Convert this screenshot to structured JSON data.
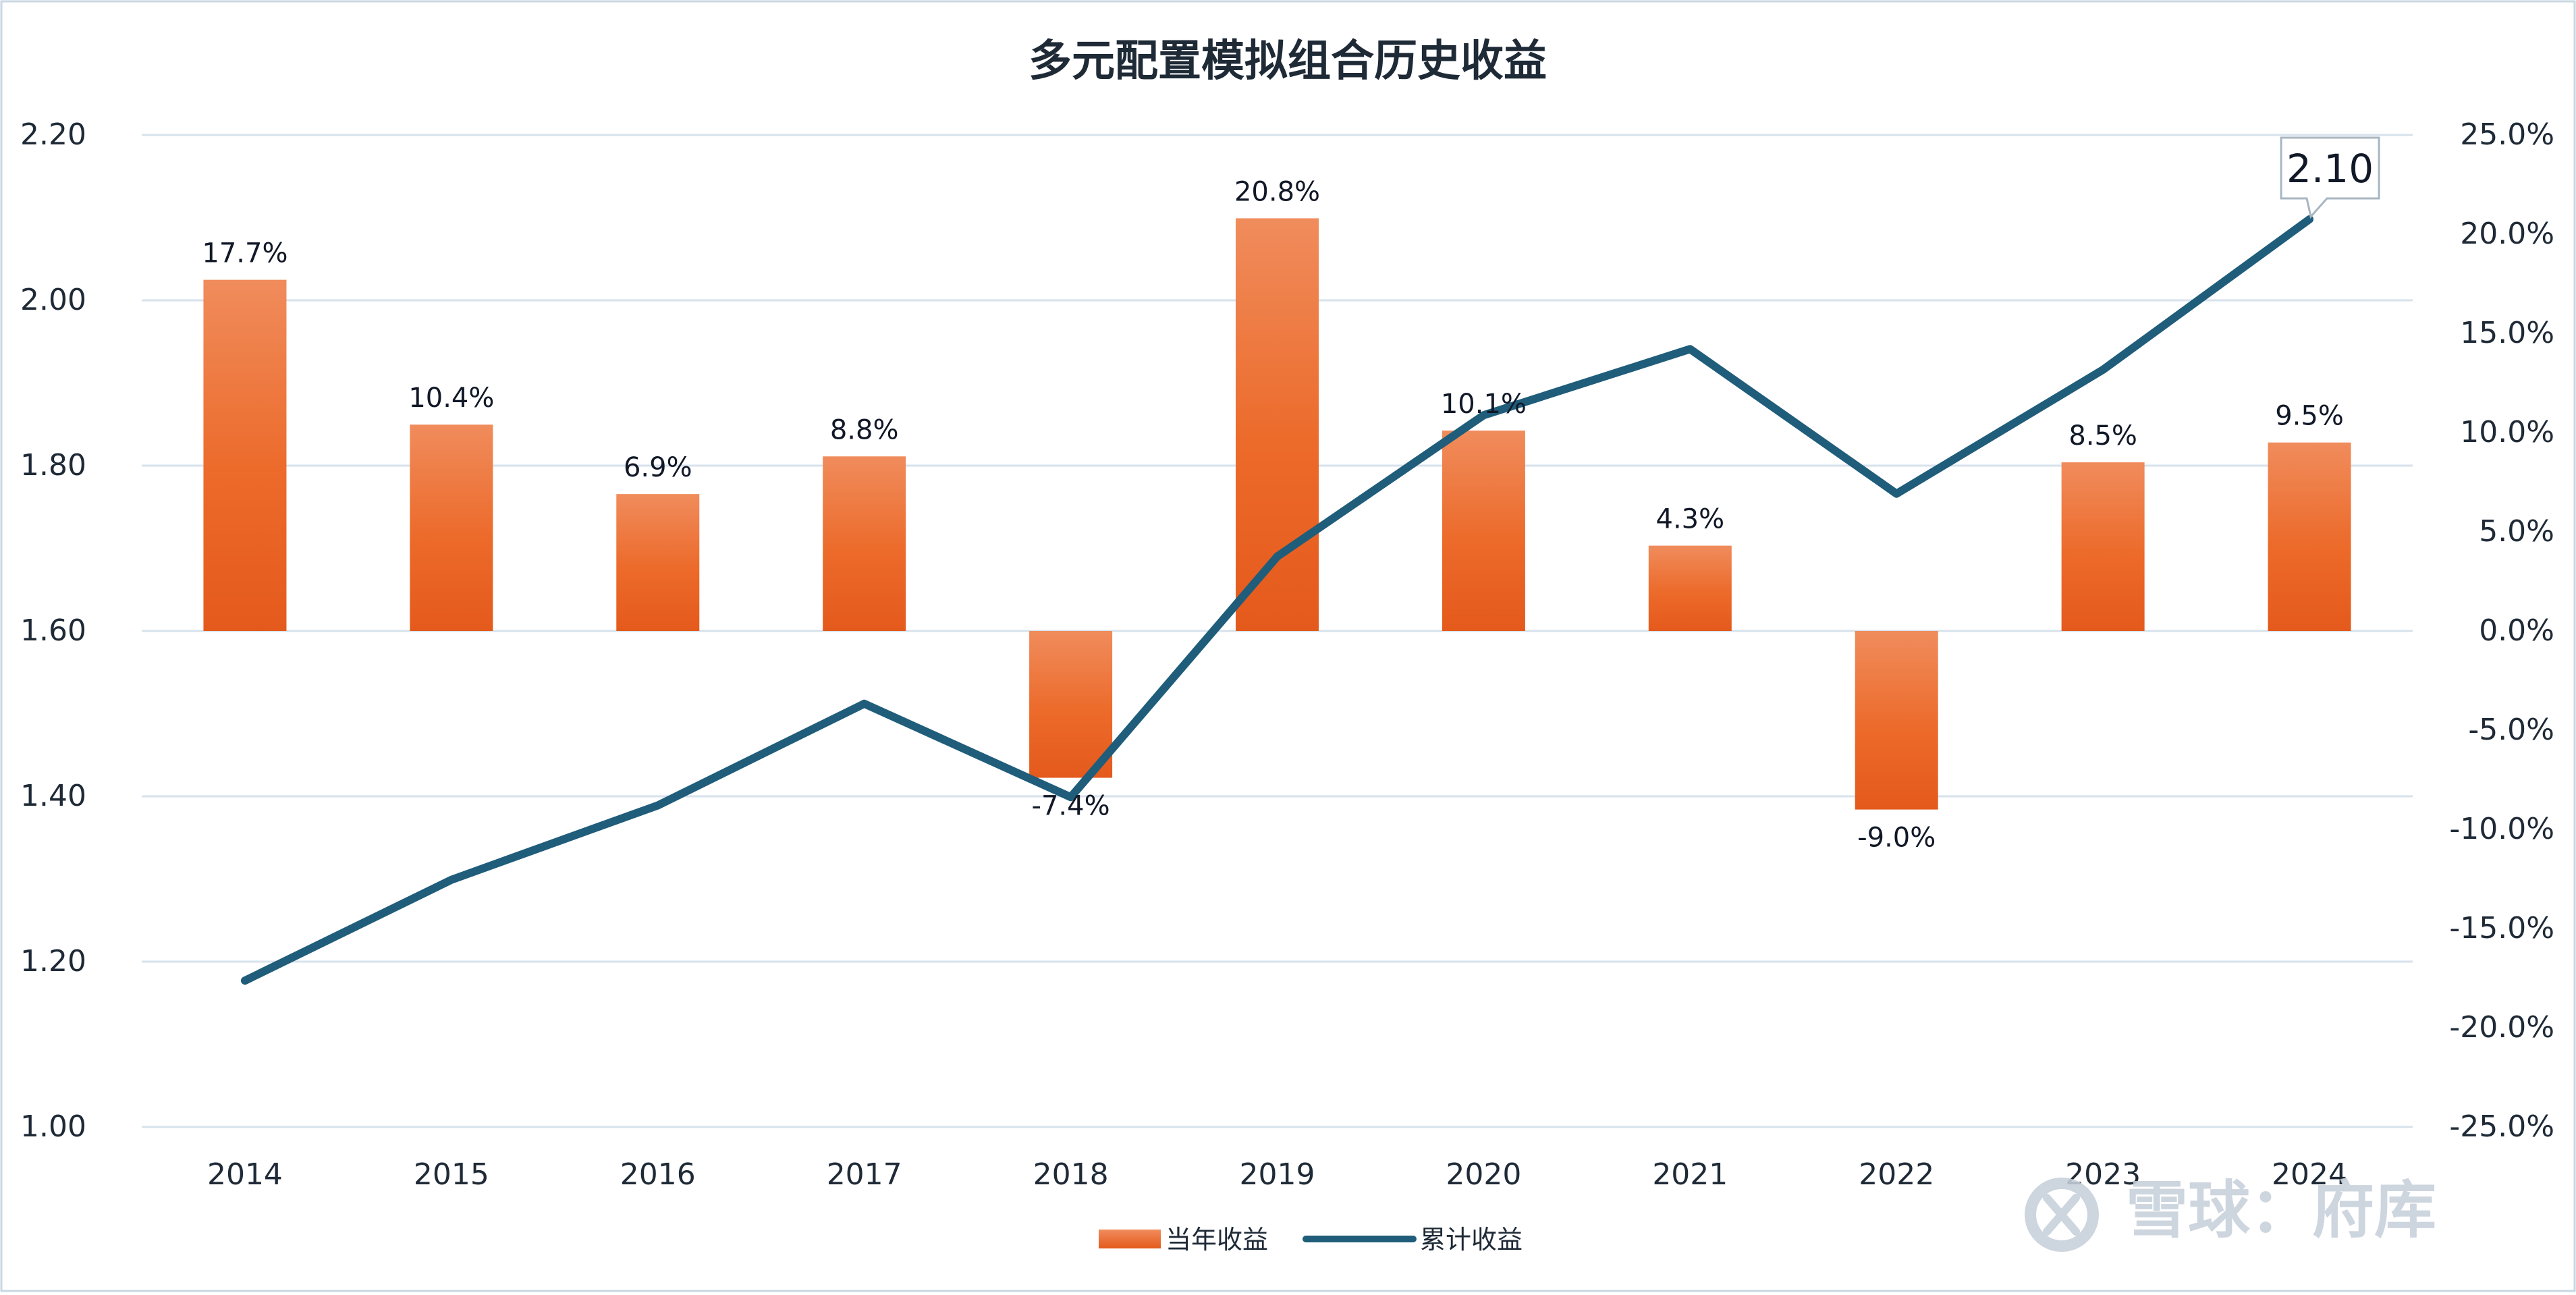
{
  "chart_data": {
    "type": "bar+line",
    "title": "多元配置模拟组合历史收益",
    "categories": [
      "2014",
      "2015",
      "2016",
      "2017",
      "2018",
      "2019",
      "2020",
      "2021",
      "2022",
      "2023",
      "2024"
    ],
    "series": [
      {
        "name": "当年收益",
        "type": "bar",
        "axis": "right",
        "values": [
          17.7,
          10.4,
          6.9,
          8.8,
          -7.4,
          20.8,
          10.1,
          4.3,
          -9.0,
          8.5,
          9.5
        ],
        "labels": [
          "17.7%",
          "10.4%",
          "6.9%",
          "8.8%",
          "-7.4%",
          "20.8%",
          "10.1%",
          "4.3%",
          "-9.0%",
          "8.5%",
          "9.5%"
        ],
        "color": "#EA6A24"
      },
      {
        "name": "累计收益",
        "type": "line",
        "axis": "left",
        "values": [
          1.177,
          1.299,
          1.389,
          1.512,
          1.399,
          1.69,
          1.861,
          1.941,
          1.766,
          1.916,
          2.098
        ],
        "color": "#1F5D7A"
      }
    ],
    "left_axis": {
      "ylim": [
        1.0,
        2.2
      ],
      "ticks": [
        "1.00",
        "1.20",
        "1.40",
        "1.60",
        "1.80",
        "2.00",
        "2.20"
      ]
    },
    "right_axis": {
      "ylim": [
        -25,
        25
      ],
      "ticks": [
        "-25.0%",
        "-20.0%",
        "-15.0%",
        "-10.0%",
        "-5.0%",
        "0.0%",
        "5.0%",
        "10.0%",
        "15.0%",
        "20.0%",
        "25.0%"
      ]
    },
    "callout": {
      "text": "2.10",
      "point_index": 10
    },
    "grid": true,
    "legend": "bottom-center"
  },
  "watermark": {
    "text": "雪球：府库"
  }
}
